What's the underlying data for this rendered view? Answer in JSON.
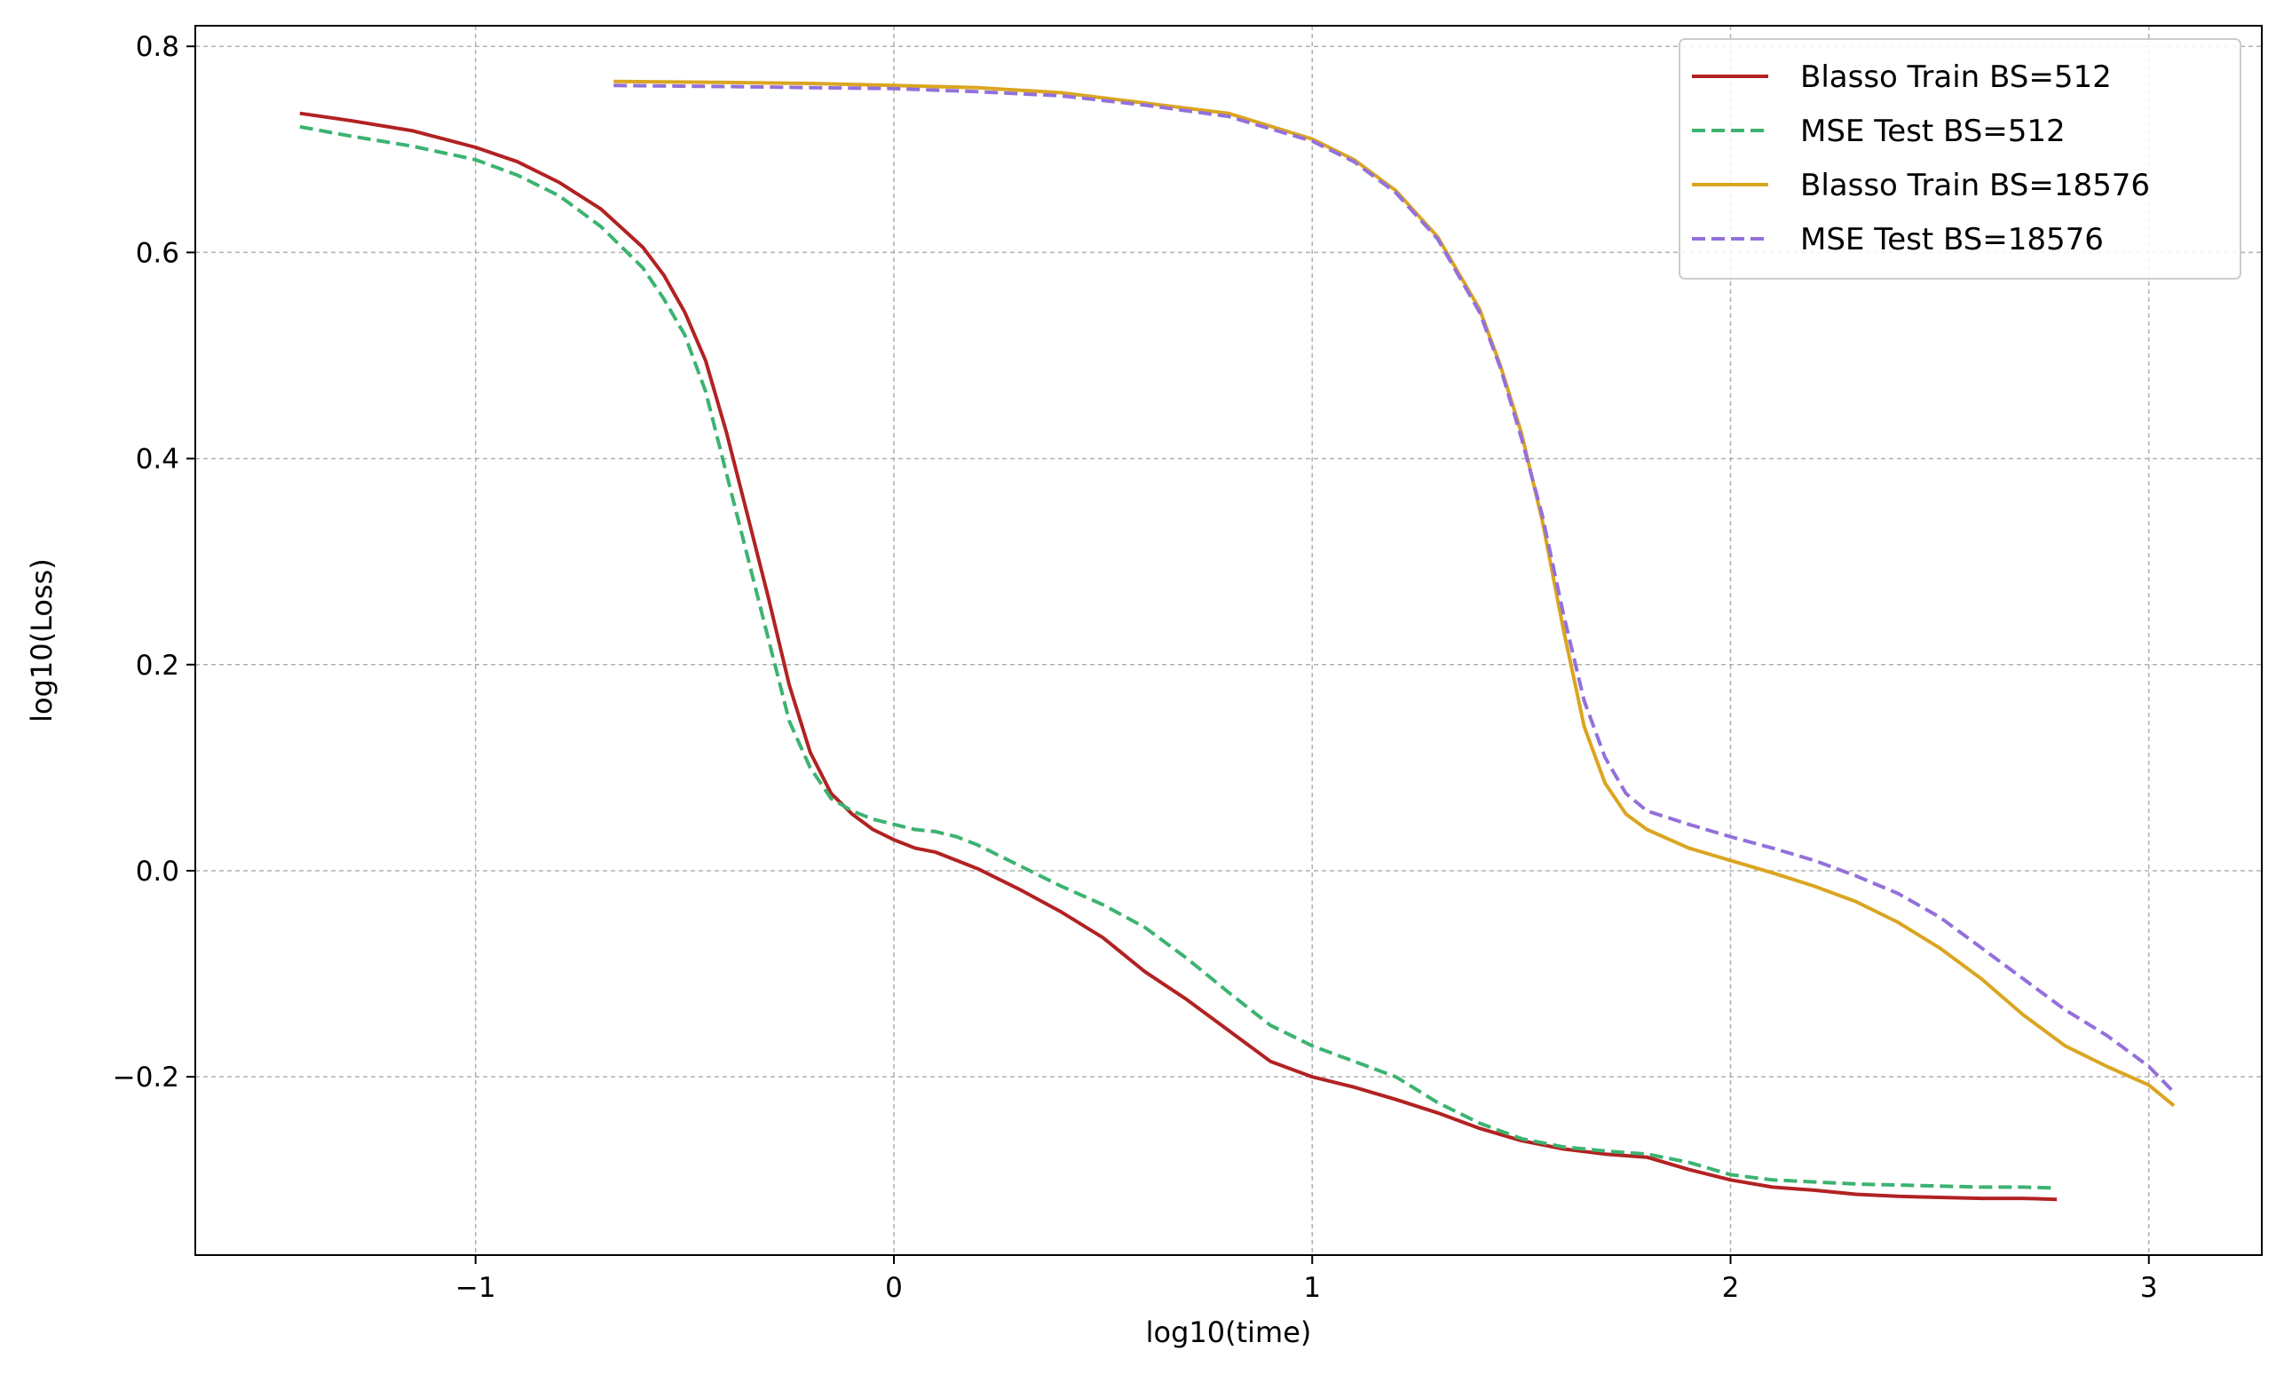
{
  "chart_data": {
    "type": "line",
    "title": "",
    "xlabel": "log10(time)",
    "ylabel": "log10(Loss)",
    "xlim": [
      -1.67,
      3.27
    ],
    "ylim": [
      -0.373,
      0.82
    ],
    "grid": true,
    "legend_position": "top-right",
    "x_ticks": [
      -1,
      0,
      1,
      2,
      3
    ],
    "x_tick_labels": [
      "−1",
      "0",
      "1",
      "2",
      "3"
    ],
    "y_ticks": [
      0.8,
      0.6,
      0.4,
      0.2,
      0.0,
      -0.2
    ],
    "y_tick_labels": [
      "0.8",
      "0.6",
      "0.4",
      "0.2",
      "0.0",
      "−0.2"
    ],
    "series": [
      {
        "name": "Blasso Train BS=512",
        "color": "#b22222",
        "dash": "solid",
        "x": [
          -1.42,
          -1.3,
          -1.15,
          -1.0,
          -0.9,
          -0.8,
          -0.7,
          -0.6,
          -0.55,
          -0.5,
          -0.45,
          -0.4,
          -0.35,
          -0.3,
          -0.25,
          -0.2,
          -0.15,
          -0.1,
          -0.05,
          0.0,
          0.05,
          0.1,
          0.15,
          0.2,
          0.3,
          0.4,
          0.5,
          0.6,
          0.7,
          0.8,
          0.9,
          1.0,
          1.1,
          1.2,
          1.3,
          1.4,
          1.5,
          1.6,
          1.7,
          1.8,
          1.9,
          2.0,
          2.1,
          2.2,
          2.3,
          2.4,
          2.5,
          2.6,
          2.7,
          2.78
        ],
        "y": [
          0.735,
          0.728,
          0.718,
          0.702,
          0.688,
          0.668,
          0.642,
          0.605,
          0.578,
          0.542,
          0.495,
          0.425,
          0.345,
          0.265,
          0.18,
          0.115,
          0.075,
          0.055,
          0.04,
          0.03,
          0.022,
          0.018,
          0.01,
          0.002,
          -0.018,
          -0.04,
          -0.065,
          -0.098,
          -0.125,
          -0.155,
          -0.185,
          -0.2,
          -0.21,
          -0.222,
          -0.235,
          -0.25,
          -0.262,
          -0.27,
          -0.275,
          -0.278,
          -0.29,
          -0.3,
          -0.307,
          -0.31,
          -0.314,
          -0.316,
          -0.317,
          -0.318,
          -0.318,
          -0.319
        ]
      },
      {
        "name": "MSE Test BS=512",
        "color": "#3cb371",
        "dash": "dashed",
        "x": [
          -1.42,
          -1.3,
          -1.15,
          -1.0,
          -0.9,
          -0.8,
          -0.7,
          -0.6,
          -0.55,
          -0.5,
          -0.45,
          -0.4,
          -0.35,
          -0.3,
          -0.25,
          -0.2,
          -0.15,
          -0.1,
          -0.05,
          0.0,
          0.05,
          0.1,
          0.15,
          0.2,
          0.3,
          0.4,
          0.5,
          0.6,
          0.7,
          0.8,
          0.9,
          1.0,
          1.1,
          1.2,
          1.3,
          1.4,
          1.5,
          1.6,
          1.7,
          1.8,
          1.9,
          2.0,
          2.1,
          2.2,
          2.3,
          2.4,
          2.5,
          2.6,
          2.7,
          2.78
        ],
        "y": [
          0.722,
          0.713,
          0.703,
          0.69,
          0.675,
          0.655,
          0.625,
          0.585,
          0.555,
          0.52,
          0.465,
          0.385,
          0.305,
          0.225,
          0.145,
          0.1,
          0.07,
          0.058,
          0.05,
          0.045,
          0.04,
          0.038,
          0.033,
          0.025,
          0.005,
          -0.015,
          -0.033,
          -0.055,
          -0.085,
          -0.118,
          -0.15,
          -0.17,
          -0.185,
          -0.2,
          -0.225,
          -0.245,
          -0.26,
          -0.268,
          -0.272,
          -0.275,
          -0.283,
          -0.295,
          -0.3,
          -0.302,
          -0.304,
          -0.305,
          -0.306,
          -0.307,
          -0.307,
          -0.308
        ]
      },
      {
        "name": "Blasso Train BS=18576",
        "color": "#daa520",
        "dash": "solid",
        "x": [
          -0.67,
          -0.4,
          -0.2,
          0.0,
          0.2,
          0.4,
          0.6,
          0.8,
          1.0,
          1.1,
          1.2,
          1.3,
          1.4,
          1.45,
          1.5,
          1.55,
          1.6,
          1.65,
          1.7,
          1.75,
          1.8,
          1.9,
          2.0,
          2.1,
          2.2,
          2.3,
          2.4,
          2.5,
          2.6,
          2.7,
          2.8,
          2.9,
          3.0,
          3.06
        ],
        "y": [
          0.766,
          0.765,
          0.764,
          0.762,
          0.76,
          0.755,
          0.745,
          0.735,
          0.71,
          0.69,
          0.66,
          0.615,
          0.545,
          0.49,
          0.425,
          0.34,
          0.235,
          0.14,
          0.085,
          0.055,
          0.04,
          0.022,
          0.01,
          -0.002,
          -0.015,
          -0.03,
          -0.05,
          -0.075,
          -0.105,
          -0.14,
          -0.17,
          -0.19,
          -0.208,
          -0.228
        ]
      },
      {
        "name": "MSE Test BS=18576",
        "color": "#9370db",
        "dash": "dashed",
        "x": [
          -0.67,
          -0.4,
          -0.2,
          0.0,
          0.2,
          0.4,
          0.6,
          0.8,
          1.0,
          1.1,
          1.2,
          1.3,
          1.4,
          1.45,
          1.5,
          1.55,
          1.6,
          1.65,
          1.7,
          1.75,
          1.8,
          1.9,
          2.0,
          2.1,
          2.2,
          2.3,
          2.4,
          2.5,
          2.6,
          2.7,
          2.8,
          2.9,
          3.0,
          3.06
        ],
        "y": [
          0.762,
          0.761,
          0.76,
          0.759,
          0.756,
          0.752,
          0.743,
          0.732,
          0.708,
          0.688,
          0.658,
          0.613,
          0.542,
          0.488,
          0.42,
          0.345,
          0.25,
          0.165,
          0.11,
          0.075,
          0.058,
          0.045,
          0.033,
          0.022,
          0.01,
          -0.005,
          -0.022,
          -0.045,
          -0.075,
          -0.105,
          -0.135,
          -0.16,
          -0.19,
          -0.215
        ]
      }
    ]
  }
}
